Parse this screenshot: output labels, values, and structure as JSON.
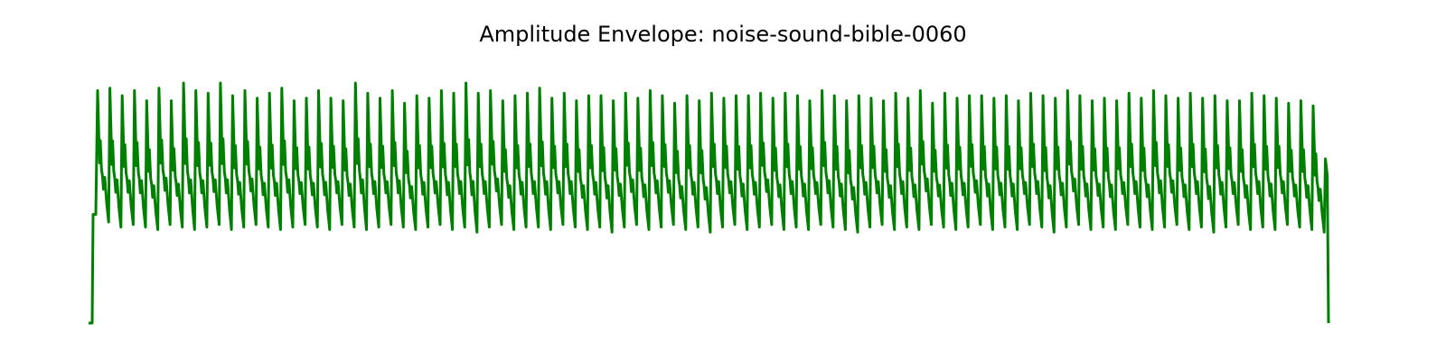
{
  "chart_data": {
    "type": "line",
    "title": "Amplitude Envelope: noise-sound-bible-0060",
    "xlabel": "",
    "ylabel": "",
    "axes_visible": false,
    "grid": false,
    "line_color": "#008000",
    "ylim": [
      0,
      1.0
    ],
    "lead_in": {
      "floor": 0.0,
      "step_level": 0.43
    },
    "tail": {
      "last_peak": 0.65,
      "end_level": 0.0
    },
    "pulse_shape": {
      "description": "each pulse: sharp rise to peak, dip, secondary bump, gradual decay, valley",
      "secondary_ratio": 0.62,
      "shoulder_ratio": 0.5
    },
    "peaks": [
      0.92,
      0.93,
      0.9,
      0.92,
      0.88,
      0.93,
      0.88,
      0.95,
      0.92,
      0.91,
      0.95,
      0.9,
      0.92,
      0.89,
      0.91,
      0.93,
      0.88,
      0.89,
      0.92,
      0.89,
      0.88,
      0.95,
      0.91,
      0.89,
      0.92,
      0.87,
      0.9,
      0.89,
      0.92,
      0.91,
      0.95,
      0.91,
      0.92,
      0.88,
      0.9,
      0.91,
      0.93,
      0.89,
      0.91,
      0.88,
      0.9,
      0.9,
      0.88,
      0.91,
      0.89,
      0.92,
      0.9,
      0.87,
      0.9,
      0.88,
      0.91,
      0.89,
      0.9,
      0.9,
      0.91,
      0.89,
      0.91,
      0.9,
      0.88,
      0.92,
      0.9,
      0.88,
      0.9,
      0.89,
      0.88,
      0.91,
      0.89,
      0.92,
      0.87,
      0.91,
      0.89,
      0.9,
      0.9,
      0.89,
      0.9,
      0.88,
      0.91,
      0.9,
      0.89,
      0.92,
      0.9,
      0.88,
      0.89,
      0.88,
      0.91,
      0.89,
      0.92,
      0.9,
      0.89,
      0.91,
      0.89,
      0.9,
      0.88,
      0.88,
      0.91,
      0.9,
      0.89,
      0.87,
      0.88,
      0.86
    ],
    "valleys": [
      0.4,
      0.38,
      0.39,
      0.38,
      0.37,
      0.39,
      0.38,
      0.37,
      0.38,
      0.39,
      0.37,
      0.38,
      0.39,
      0.38,
      0.37,
      0.38,
      0.39,
      0.38,
      0.37,
      0.39,
      0.38,
      0.37,
      0.38,
      0.39,
      0.38,
      0.37,
      0.38,
      0.39,
      0.37,
      0.38,
      0.36,
      0.38,
      0.39,
      0.37,
      0.38,
      0.38,
      0.37,
      0.39,
      0.38,
      0.37,
      0.38,
      0.36,
      0.38,
      0.39,
      0.37,
      0.38,
      0.39,
      0.37,
      0.38,
      0.36,
      0.38,
      0.39,
      0.37,
      0.38,
      0.39,
      0.37,
      0.38,
      0.37,
      0.39,
      0.38,
      0.37,
      0.36,
      0.38,
      0.39,
      0.37,
      0.38,
      0.37,
      0.39,
      0.38,
      0.37,
      0.38,
      0.39,
      0.37,
      0.38,
      0.37,
      0.39,
      0.38,
      0.36,
      0.38,
      0.39,
      0.37,
      0.38,
      0.37,
      0.39,
      0.38,
      0.37,
      0.38,
      0.39,
      0.37,
      0.38,
      0.36,
      0.38,
      0.39,
      0.37,
      0.38,
      0.37,
      0.39,
      0.38,
      0.37,
      0.36
    ]
  }
}
